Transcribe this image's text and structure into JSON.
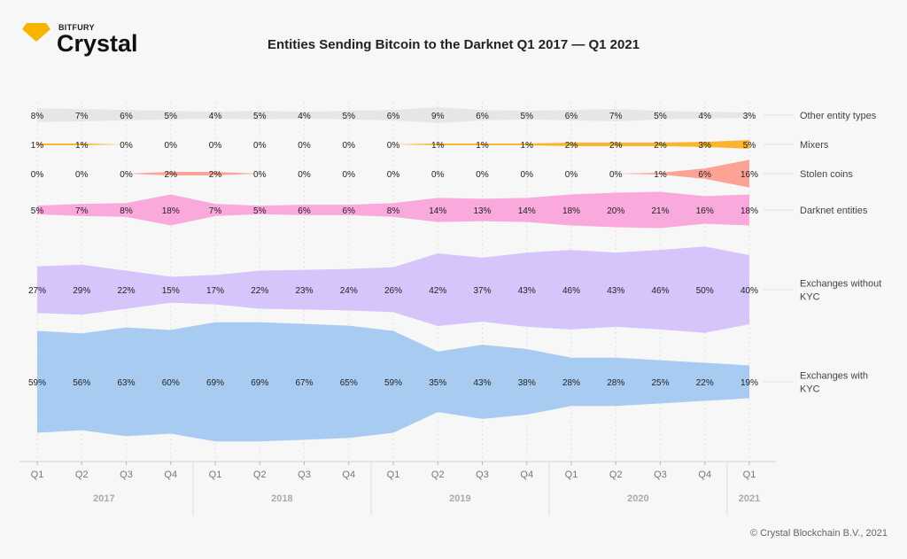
{
  "header": {
    "brand_small": "BITFURY",
    "brand_name": "Crystal",
    "title": "Entities Sending Bitcoin to the Darknet Q1 2017 — Q1 2021"
  },
  "footer": {
    "copyright": "© Crystal Blockchain B.V., 2021"
  },
  "chart_data": {
    "type": "area",
    "title": "Entities Sending Bitcoin to the Darknet Q1 2017 — Q1 2021",
    "categories": [
      "Q1",
      "Q2",
      "Q3",
      "Q4",
      "Q1",
      "Q2",
      "Q3",
      "Q4",
      "Q1",
      "Q2",
      "Q3",
      "Q4",
      "Q1",
      "Q2",
      "Q3",
      "Q4",
      "Q1"
    ],
    "years": [
      {
        "label": "2017",
        "quarters": 4
      },
      {
        "label": "2018",
        "quarters": 4
      },
      {
        "label": "2019",
        "quarters": 4
      },
      {
        "label": "2020",
        "quarters": 4
      },
      {
        "label": "2021",
        "quarters": 1
      }
    ],
    "unit": "%",
    "series": [
      {
        "name": "Other entity types",
        "color": "#e6e6e6",
        "values": [
          8,
          7,
          6,
          5,
          4,
          5,
          4,
          5,
          6,
          9,
          6,
          5,
          6,
          7,
          5,
          4,
          3
        ]
      },
      {
        "name": "Mixers",
        "color": "#fbb42c",
        "values": [
          1,
          1,
          0,
          0,
          0,
          0,
          0,
          0,
          0,
          1,
          1,
          1,
          2,
          2,
          2,
          3,
          5
        ]
      },
      {
        "name": "Stolen coins",
        "color": "#fca396",
        "values": [
          0,
          0,
          0,
          2,
          2,
          0,
          0,
          0,
          0,
          0,
          0,
          0,
          0,
          0,
          1,
          6,
          16
        ]
      },
      {
        "name": "Darknet entities",
        "color": "#f9a9dc",
        "values": [
          5,
          7,
          8,
          18,
          7,
          5,
          6,
          6,
          8,
          14,
          13,
          14,
          18,
          20,
          21,
          16,
          18
        ]
      },
      {
        "name": "Exchanges without KYC",
        "color": "#d5c5fb",
        "values": [
          27,
          29,
          22,
          15,
          17,
          22,
          23,
          24,
          26,
          42,
          37,
          43,
          46,
          43,
          46,
          50,
          40
        ]
      },
      {
        "name": "Exchanges with KYC",
        "color": "#a8cbf1",
        "values": [
          59,
          56,
          63,
          60,
          69,
          69,
          67,
          65,
          59,
          35,
          43,
          38,
          28,
          28,
          25,
          22,
          19
        ]
      }
    ],
    "legend": "right",
    "grid": true
  }
}
